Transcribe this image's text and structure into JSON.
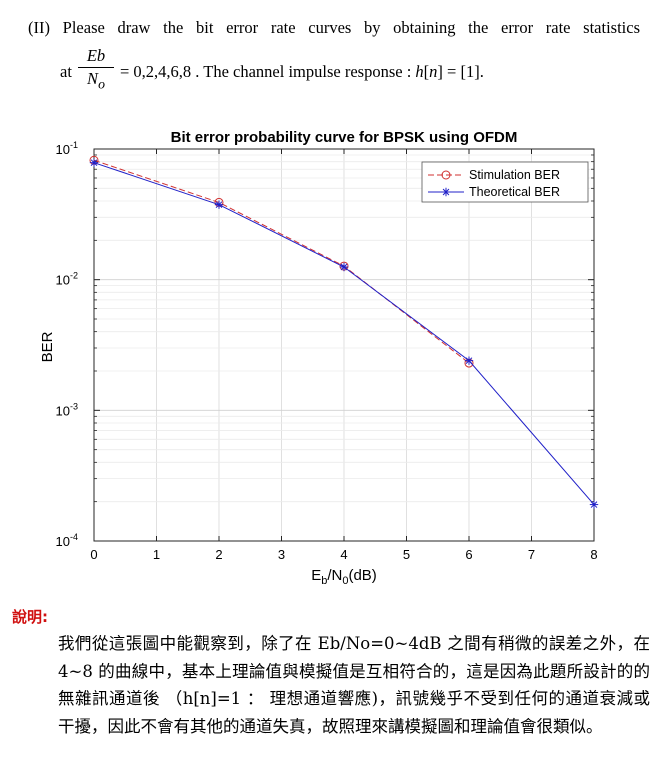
{
  "question": {
    "line1": "(II) Please draw the bit error rate curves by obtaining the error rate statistics",
    "at": "at",
    "frac_num": "Eb",
    "frac_den": "N",
    "frac_den_sub": "o",
    "line2_rest_a": " = 0,2,4,6,8 . The channel impulse response : ",
    "line2_rest_b": "h",
    "line2_rest_c": "[",
    "line2_rest_d": "n",
    "line2_rest_e": "] = [1]."
  },
  "chart_data": {
    "type": "line",
    "title": "Bit error probability curve for BPSK using OFDM",
    "xlabel_main": "E",
    "xlabel_sub1": "b",
    "xlabel_mid": "/N",
    "xlabel_sub2": "0",
    "xlabel_end": "(dB)",
    "ylabel": "BER",
    "xlim": [
      0,
      8
    ],
    "ylim": [
      0.0001,
      0.1
    ],
    "yscale": "log",
    "x_ticks": [
      0,
      1,
      2,
      3,
      4,
      5,
      6,
      7,
      8
    ],
    "y_tick_exponents": [
      -1,
      -2,
      -3,
      -4
    ],
    "y_tick_base": "10",
    "legend_position": "top-right",
    "series": [
      {
        "name": "Stimulation BER",
        "color": "#d03030",
        "marker": "circle",
        "dash": true,
        "x": [
          0,
          2,
          4,
          6
        ],
        "y": [
          0.082,
          0.039,
          0.0127,
          0.0023
        ]
      },
      {
        "name": "Theoretical BER",
        "color": "#2020c8",
        "marker": "star",
        "dash": false,
        "x": [
          0,
          2,
          4,
          6,
          8
        ],
        "y": [
          0.0786,
          0.0375,
          0.0125,
          0.0024,
          0.00019
        ]
      }
    ]
  },
  "explanation": {
    "title": "說明:",
    "body": "我們從這張圖中能觀察到，除了在 Eb/No=0~4dB 之間有稍微的誤差之外，在 4~8 的曲線中，基本上理論值與模擬值是互相符合的，這是因為此題所設計的的無雜訊通道後 （h[n]=1 ： 理想通道響應)，訊號幾乎不受到任何的通道衰減或干擾，因此不會有其他的通道失真，故照理來講模擬圖和理論值會很類似。"
  }
}
